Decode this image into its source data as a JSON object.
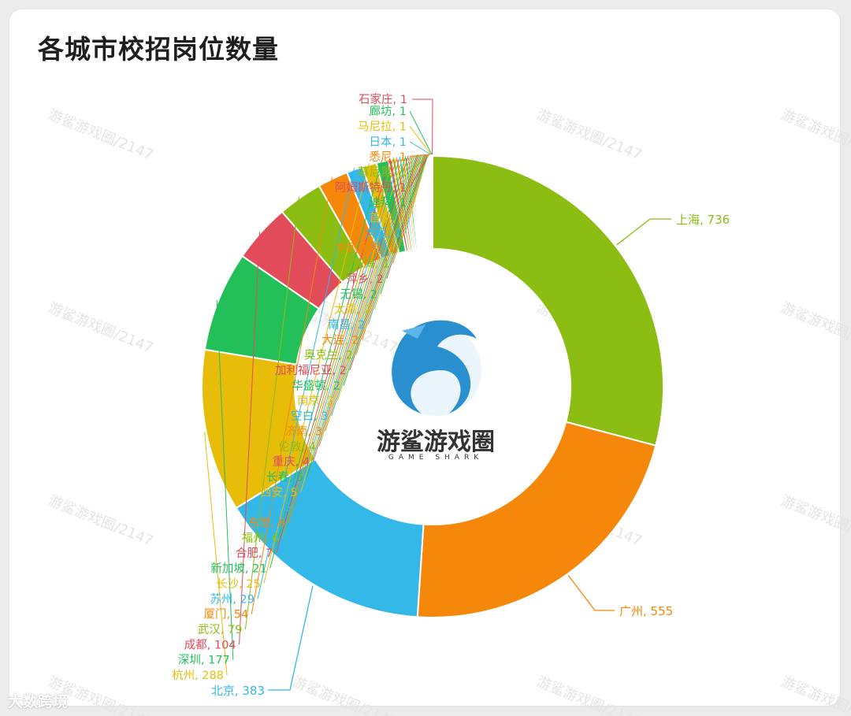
{
  "chart_data": {
    "type": "pie",
    "title": "各城市校招岗位数量",
    "series": [
      {
        "name": "上海",
        "value": 736,
        "color": "#8cbd12"
      },
      {
        "name": "广州",
        "value": 555,
        "color": "#f5880a"
      },
      {
        "name": "北京",
        "value": 383,
        "color": "#33b8e8"
      },
      {
        "name": "杭州",
        "value": 288,
        "color": "#e8bd09"
      },
      {
        "name": "深圳",
        "value": 177,
        "color": "#23c05a"
      },
      {
        "name": "成都",
        "value": 104,
        "color": "#e14b5a"
      },
      {
        "name": "武汉",
        "value": 79,
        "color": "#8cbd12"
      },
      {
        "name": "厦门",
        "value": 54,
        "color": "#f5880a"
      },
      {
        "name": "苏州",
        "value": 29,
        "color": "#33b8e8"
      },
      {
        "name": "长沙",
        "value": 25,
        "color": "#e8bd09"
      },
      {
        "name": "新加坡",
        "value": 21,
        "color": "#23c05a"
      },
      {
        "name": "合肥",
        "value": 7,
        "color": "#e14b5a"
      },
      {
        "name": "福州",
        "value": 6,
        "color": "#8cbd12"
      },
      {
        "name": "东京",
        "value": 6,
        "color": "#f5880a"
      },
      {
        "name": "天津",
        "value": 5,
        "color": "#33b8e8"
      },
      {
        "name": "西安",
        "value": 5,
        "color": "#e8bd09"
      },
      {
        "name": "长春",
        "value": 5,
        "color": "#23c05a"
      },
      {
        "name": "重庆",
        "value": 4,
        "color": "#e14b5a"
      },
      {
        "name": "伦敦",
        "value": 4,
        "color": "#8cbd12"
      },
      {
        "name": "济南",
        "value": 3,
        "color": "#f5880a"
      },
      {
        "name": "空白",
        "value": 3,
        "color": "#33b8e8"
      },
      {
        "name": "南京",
        "value": 2,
        "color": "#e8bd09"
      },
      {
        "name": "华盛顿",
        "value": 2,
        "color": "#23c05a"
      },
      {
        "name": "加利福尼亚",
        "value": 2,
        "color": "#e14b5a"
      },
      {
        "name": "奥克兰",
        "value": 2,
        "color": "#8cbd12"
      },
      {
        "name": "大连",
        "value": 2,
        "color": "#f5880a"
      },
      {
        "name": "南昌",
        "value": 2,
        "color": "#33b8e8"
      },
      {
        "name": "太原",
        "value": 2,
        "color": "#e8bd09"
      },
      {
        "name": "无锡",
        "value": 2,
        "color": "#23c05a"
      },
      {
        "name": "萍乡",
        "value": 2,
        "color": "#e14b5a"
      },
      {
        "name": "珠海",
        "value": 1,
        "color": "#8cbd12"
      },
      {
        "name": "中国香港",
        "value": 1,
        "color": "#f5880a"
      },
      {
        "name": "大阪",
        "value": 1,
        "color": "#33b8e8"
      },
      {
        "name": "首尔",
        "value": 1,
        "color": "#e8bd09"
      },
      {
        "name": "迪拜",
        "value": 1,
        "color": "#23c05a"
      },
      {
        "name": "阿姆斯特丹",
        "value": 1,
        "color": "#e14b5a"
      },
      {
        "name": "慕尼黑",
        "value": 1,
        "color": "#8cbd12"
      },
      {
        "name": "悉尼",
        "value": 1,
        "color": "#f5880a"
      },
      {
        "name": "日本",
        "value": 1,
        "color": "#33b8e8"
      },
      {
        "name": "马尼拉",
        "value": 1,
        "color": "#e8bd09"
      },
      {
        "name": "廊坊",
        "value": 1,
        "color": "#23c05a"
      },
      {
        "name": "石家庄",
        "value": 1,
        "color": "#e14b5a"
      }
    ]
  },
  "logo": {
    "name": "游鲨游戏圈",
    "subtitle": "GAME SHARK"
  },
  "watermark": "游鲨游戏圈/2147",
  "footer_mark": "大数跨境"
}
